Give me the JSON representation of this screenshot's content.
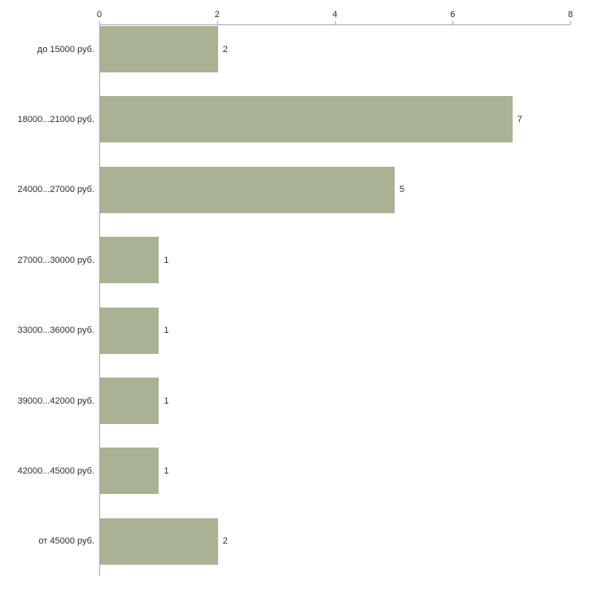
{
  "chart_data": {
    "type": "bar",
    "orientation": "horizontal",
    "categories": [
      "до 15000 руб.",
      "18000...21000 руб.",
      "24000...27000 руб.",
      "27000...30000 руб.",
      "33000...36000 руб.",
      "39000...42000 руб.",
      "42000...45000 руб.",
      "от 45000 руб."
    ],
    "values": [
      2,
      7,
      5,
      1,
      1,
      1,
      1,
      2
    ],
    "value_labels": [
      "2",
      "7",
      "5",
      "1",
      "1",
      "1",
      "1",
      "2"
    ],
    "x_ticks": [
      "0",
      "2",
      "4",
      "6",
      "8"
    ],
    "xlim": [
      0,
      8
    ],
    "grid": false,
    "legend": false,
    "axes": {
      "x_position": "top",
      "y_position": "left"
    },
    "colors": {
      "bar": "#a9b293",
      "axis": "#a8a8a8",
      "text": "#2e2e2e",
      "background": "#ffffff"
    }
  }
}
